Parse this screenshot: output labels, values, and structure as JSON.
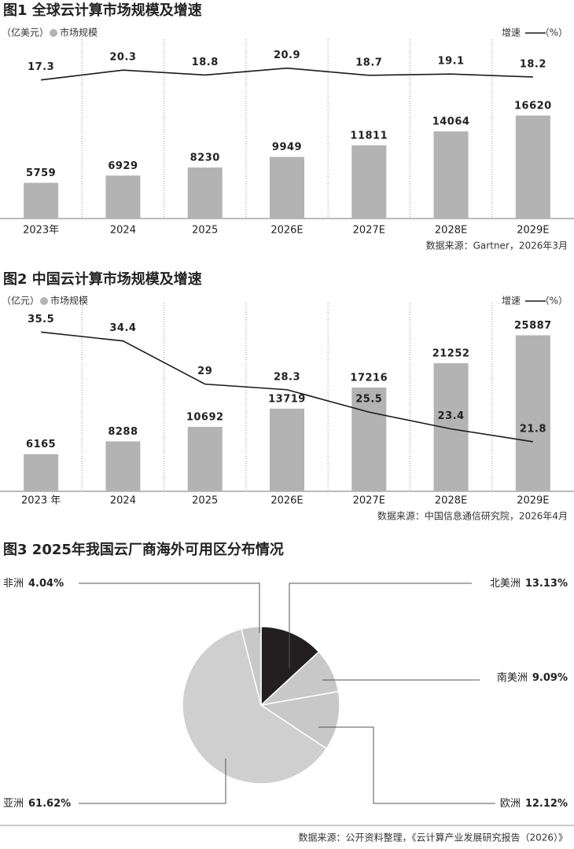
{
  "chart_data": [
    {
      "type": "combo",
      "title": "图1 全球云计算市场规模及增速",
      "unit": "（亿美元）",
      "y2_unit": "（%）",
      "categories": [
        "2023年",
        "2024",
        "2025",
        "2026E",
        "2027E",
        "2028E",
        "2029E"
      ],
      "series": [
        {
          "name": "市场规模",
          "type": "bar",
          "color": "#b3b3b3",
          "values": [
            5759,
            6929,
            8230,
            9949,
            11811,
            14064,
            16620
          ]
        },
        {
          "name": "增速",
          "type": "line",
          "axis": "y2",
          "color": "#1a1a1a",
          "values": [
            17.3,
            20.3,
            18.8,
            20.9,
            18.7,
            19.1,
            18.2
          ]
        }
      ],
      "ylim": [
        0,
        27650
      ],
      "y2lim": [
        -25,
        27.3
      ],
      "source": "数据来源：Gartner，2026年3月"
    },
    {
      "type": "combo",
      "title": "图2 中国云计算市场规模及增速",
      "unit": "（亿元）",
      "y2_unit": "（%）",
      "categories": [
        "2023 年",
        "2024",
        "2025",
        "2026E",
        "2027E",
        "2028E",
        "2029E"
      ],
      "series": [
        {
          "name": "市场规模",
          "type": "bar",
          "color": "#b3b3b3",
          "values": [
            6165,
            8288,
            10692,
            13719,
            17216,
            21252,
            25887
          ]
        },
        {
          "name": "增速",
          "type": "line",
          "axis": "y2",
          "color": "#1a1a1a",
          "values": [
            35.5,
            34.4,
            29.0,
            28.3,
            25.5,
            23.4,
            21.8
          ]
        }
      ],
      "ylim": [
        0,
        30000
      ],
      "y2lim": [
        15.6,
        38.2
      ],
      "source": "数据来源：中国信息通信研究院，2026年4月"
    },
    {
      "type": "pie",
      "title": "图3 2025年我国云厂商海外可用区分布情况",
      "categories": [
        "北美洲",
        "南美洲",
        "欧洲",
        "亚洲",
        "非洲"
      ],
      "values": [
        13.13,
        9.09,
        12.12,
        61.62,
        4.04
      ],
      "value_labels": [
        "13.13%",
        "9.09%",
        "12.12%",
        "61.62%",
        "4.04%"
      ],
      "colors": [
        "#231f20",
        "#c8c8c8",
        "#c8c8c8",
        "#cfcfcf",
        "#c8c8c8"
      ],
      "source": "数据来源：公开资料整理，《云计算产业发展研究报告（2026）》"
    }
  ]
}
